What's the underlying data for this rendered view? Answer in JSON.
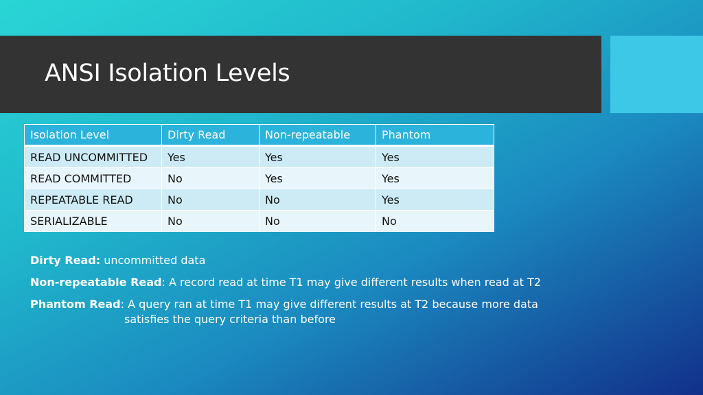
{
  "slide": {
    "title": "ANSI Isolation Levels",
    "colors": {
      "title_bar": "#333333",
      "accent_square": "#3cc8e6",
      "table_header": "#2cb3dc",
      "row_odd": "#cdebf5",
      "row_even": "#e8f5fa",
      "text_on_bg": "#ffffff"
    }
  },
  "table": {
    "headers": [
      "Isolation Level",
      "Dirty Read",
      "Non-repeatable",
      "Phantom"
    ],
    "rows": [
      [
        "READ UNCOMMITTED",
        "Yes",
        "Yes",
        "Yes"
      ],
      [
        "READ COMMITTED",
        "No",
        "Yes",
        "Yes"
      ],
      [
        "REPEATABLE READ",
        "No",
        "No",
        "Yes"
      ],
      [
        "SERIALIZABLE",
        "No",
        "No",
        "No"
      ]
    ]
  },
  "notes": [
    {
      "term": "Dirty Read:",
      "text": " uncommitted data",
      "continuation": ""
    },
    {
      "term": "Non-repeatable Read",
      "text": ": A record read at time T1 may give different results when read at T2",
      "continuation": ""
    },
    {
      "term": "Phantom Read",
      "text": ": A query ran at time T1 may give different results at T2 because more data",
      "continuation": "satisfies the query criteria than before"
    }
  ]
}
